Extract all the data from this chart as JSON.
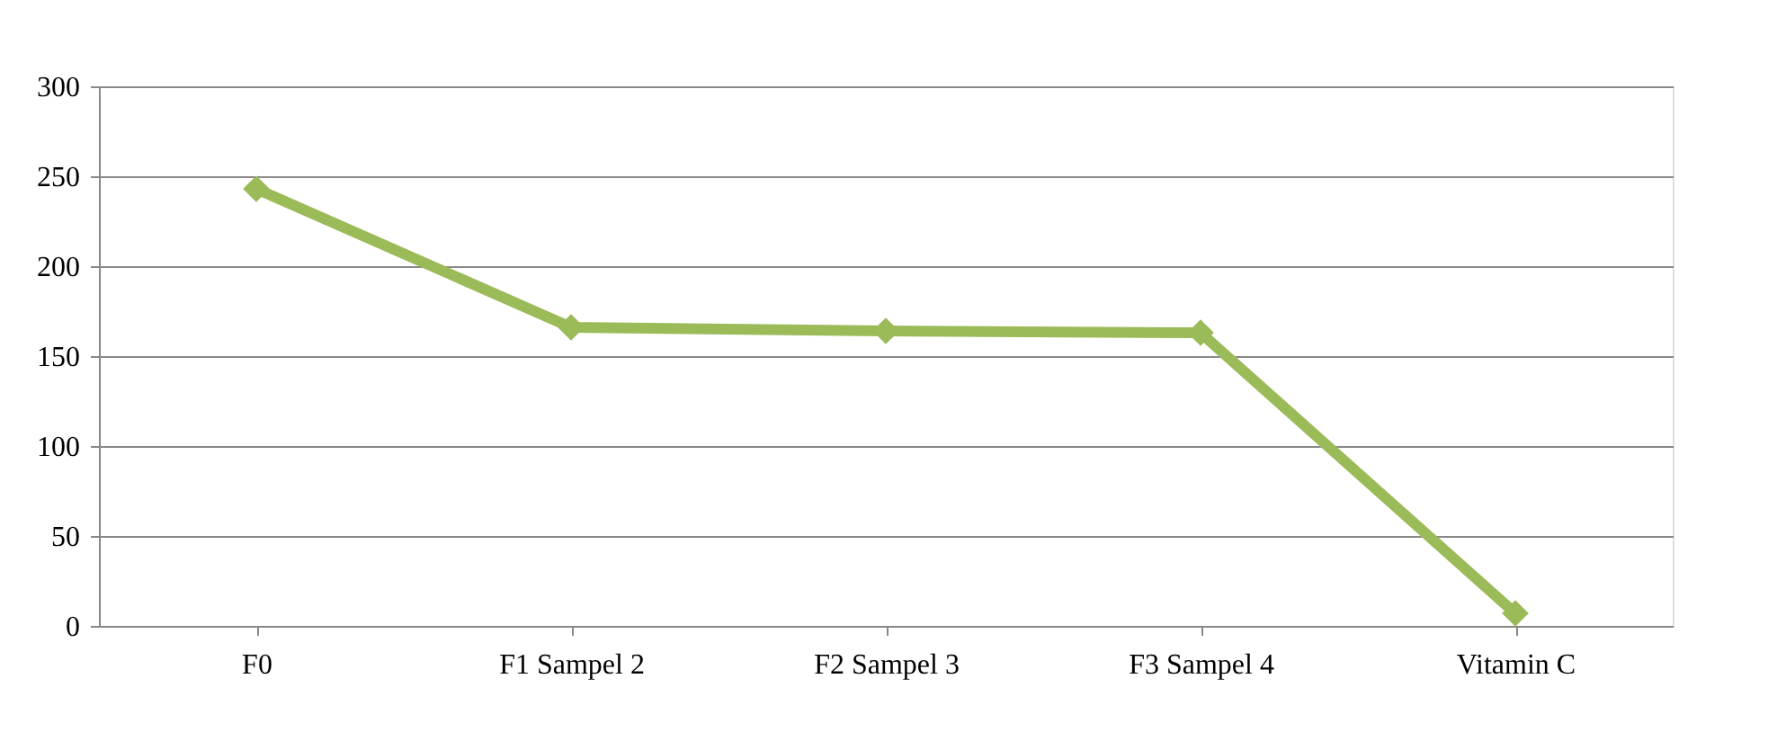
{
  "chart_data": {
    "type": "line",
    "categories": [
      "F0",
      "F1 Sampel 2",
      "F2 Sampel 3",
      "F3 Sampel 4",
      "Vitamin C"
    ],
    "series": [
      {
        "color": "#9bbb59",
        "values": [
          243,
          166,
          164,
          163,
          7
        ]
      }
    ],
    "ylim": [
      0,
      300
    ],
    "yticks": [
      0,
      50,
      100,
      150,
      200,
      250,
      300
    ],
    "grid": "y",
    "marker": "diamond",
    "line_style": "solid",
    "legend": false
  }
}
